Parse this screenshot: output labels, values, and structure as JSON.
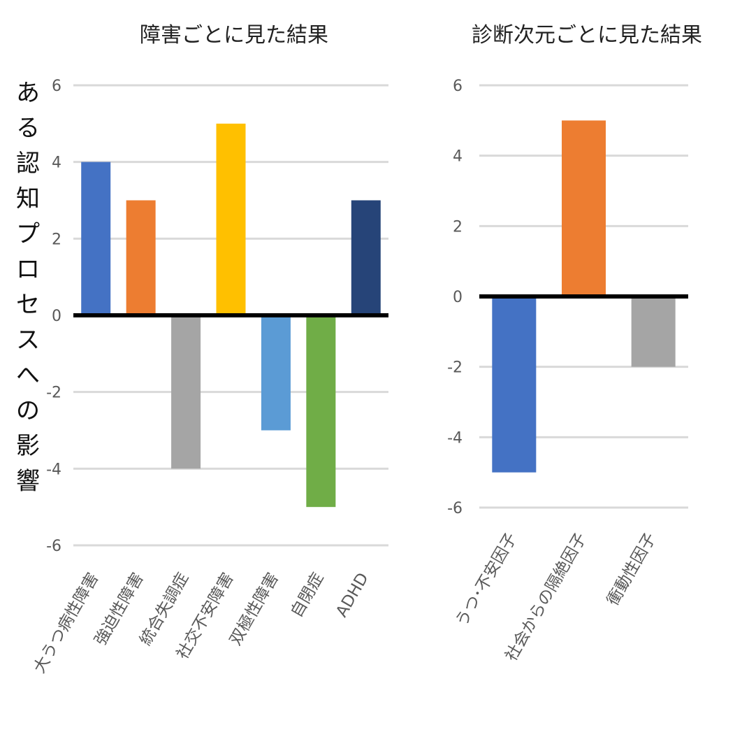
{
  "chart_data": [
    {
      "type": "bar",
      "title": "障害ごとに見た結果",
      "ylabel": "ある認知プロセスへの影響",
      "xlabel": "",
      "ylim": [
        -6,
        6
      ],
      "yticks": [
        "6",
        "4",
        "2",
        "0",
        "-2",
        "-4",
        "-6"
      ],
      "grid": true,
      "categories": [
        "大うつ病性障害",
        "強迫性障害",
        "統合失調症",
        "社交不安障害",
        "双極性障害",
        "自閉症",
        "ADHD"
      ],
      "values": [
        4,
        3,
        -4,
        5,
        -3,
        -5,
        3
      ],
      "colors": [
        "#4472C4",
        "#ED7D31",
        "#A5A5A5",
        "#FFC000",
        "#5B9BD5",
        "#70AD47",
        "#264478"
      ]
    },
    {
      "type": "bar",
      "title": "診断次元ごとに見た結果",
      "ylabel": "",
      "xlabel": "",
      "ylim": [
        -6,
        6
      ],
      "yticks": [
        "6",
        "4",
        "2",
        "0",
        "-2",
        "-4",
        "-6"
      ],
      "grid": true,
      "categories": [
        "うつ･不安因子",
        "社会からの隔絶因子",
        "衝動性因子"
      ],
      "values": [
        -5,
        5,
        -2
      ],
      "colors": [
        "#4472C4",
        "#ED7D31",
        "#A5A5A5"
      ]
    }
  ]
}
